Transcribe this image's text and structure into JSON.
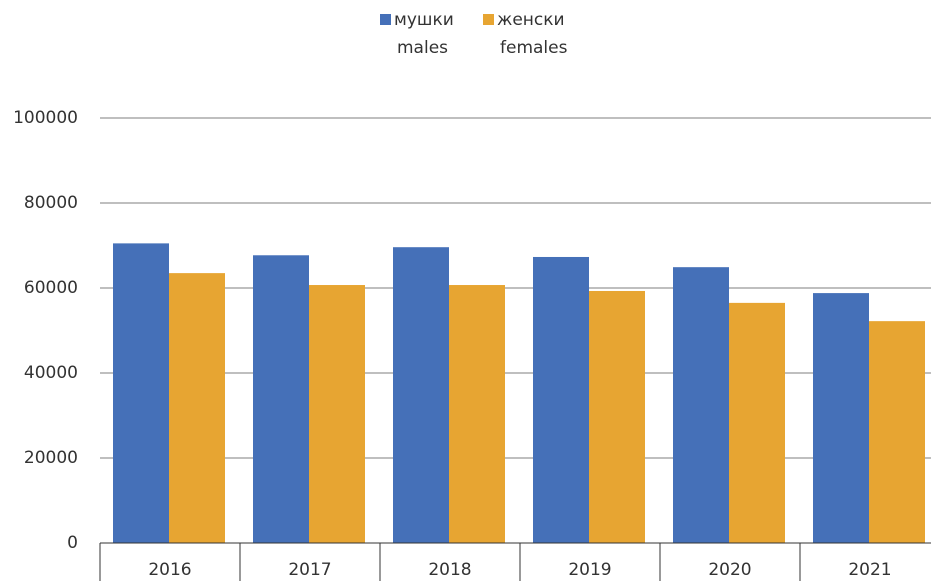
{
  "chart_data": {
    "type": "bar",
    "categories": [
      "2016",
      "2017",
      "2018",
      "2019",
      "2020",
      "2021"
    ],
    "series": [
      {
        "name": [
          "мушки",
          "males"
        ],
        "color": "#4570b8",
        "values": [
          70500,
          67700,
          69600,
          67300,
          64900,
          58800
        ]
      },
      {
        "name": [
          "женски",
          "females"
        ],
        "color": "#e7a532",
        "values": [
          63500,
          60700,
          60700,
          59300,
          56500,
          52200
        ]
      }
    ],
    "ylim": [
      0,
      100000
    ],
    "yticks": [
      0,
      20000,
      40000,
      60000,
      80000,
      100000
    ],
    "grid": true,
    "legend": "top"
  }
}
